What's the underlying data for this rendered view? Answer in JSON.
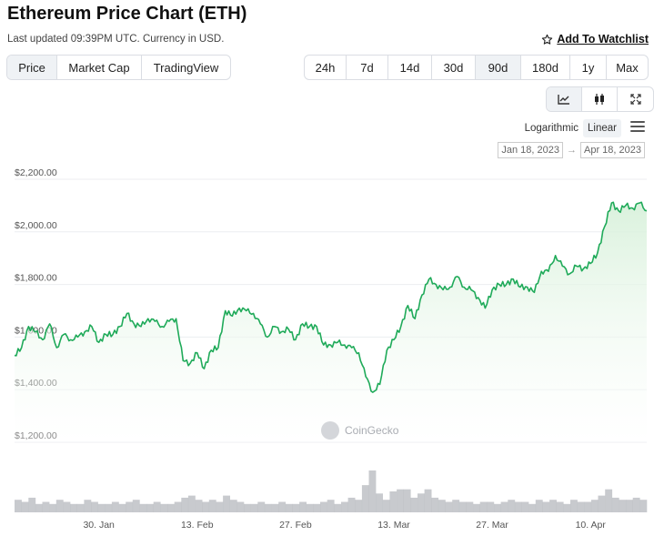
{
  "header": {
    "title": "Ethereum Price Chart (ETH)",
    "subtitle": "Last updated 09:39PM UTC. Currency in USD.",
    "watchlist_label": "Add To Watchlist"
  },
  "view_tabs": [
    {
      "label": "Price",
      "active": true
    },
    {
      "label": "Market Cap",
      "active": false
    },
    {
      "label": "TradingView",
      "active": false
    }
  ],
  "range_tabs": [
    {
      "label": "24h",
      "active": false
    },
    {
      "label": "7d",
      "active": false
    },
    {
      "label": "14d",
      "active": false
    },
    {
      "label": "30d",
      "active": false
    },
    {
      "label": "90d",
      "active": true
    },
    {
      "label": "180d",
      "active": false
    },
    {
      "label": "1y",
      "active": false
    },
    {
      "label": "Max",
      "active": false
    }
  ],
  "chart_type_icons": [
    {
      "name": "line-chart-icon",
      "active": true
    },
    {
      "name": "candlestick-icon",
      "active": false
    },
    {
      "name": "fullscreen-icon",
      "active": false
    }
  ],
  "scale": {
    "logarithmic_label": "Logarithmic",
    "linear_label": "Linear",
    "selected": "Linear"
  },
  "date_range": {
    "from": "Jan 18, 2023",
    "arrow": "→",
    "to": "Apr 18, 2023"
  },
  "watermark": "CoinGecko",
  "colors": {
    "line": "#1faa59",
    "fill_top": "#d6f0d9",
    "fill_bottom": "#ffffff",
    "volume": "#b6b8bd",
    "grid": "#eceef1"
  },
  "chart_data": {
    "type": "area",
    "title": "",
    "xlabel": "",
    "ylabel": "",
    "ylim": [
      1200,
      2200
    ],
    "yticks": [
      "$1,200.00",
      "$1,400.00",
      "$1,600.00",
      "$1,800.00",
      "$2,000.00",
      "$2,200.00"
    ],
    "ytick_values": [
      1200,
      1400,
      1600,
      1800,
      2000,
      2200
    ],
    "xticks": [
      "30. Jan",
      "13. Feb",
      "27. Feb",
      "13. Mar",
      "27. Mar",
      "10. Apr"
    ],
    "xtick_days": [
      12,
      26,
      40,
      54,
      68,
      82
    ],
    "grid": true,
    "legend": "none",
    "series": [
      {
        "x_days": [
          0,
          1,
          2,
          3,
          4,
          5,
          6,
          7,
          8,
          9,
          10,
          11,
          12,
          13,
          14,
          15,
          16,
          17,
          18,
          19,
          20,
          21,
          22,
          23,
          24,
          25,
          26,
          27,
          28,
          29,
          30,
          31,
          32,
          33,
          34,
          35,
          36,
          37,
          38,
          39,
          40,
          41,
          42,
          43,
          44,
          45,
          46,
          47,
          48,
          49,
          50,
          51,
          52,
          53,
          54,
          55,
          56,
          57,
          58,
          59,
          60,
          61,
          62,
          63,
          64,
          65,
          66,
          67,
          68,
          69,
          70,
          71,
          72,
          73,
          74,
          75,
          76,
          77,
          78,
          79,
          80,
          81,
          82,
          83,
          84,
          85,
          86,
          87,
          88,
          89,
          90
        ],
        "values": [
          1530,
          1560,
          1640,
          1620,
          1590,
          1650,
          1560,
          1610,
          1590,
          1600,
          1620,
          1640,
          1580,
          1610,
          1610,
          1640,
          1690,
          1650,
          1640,
          1670,
          1660,
          1640,
          1660,
          1670,
          1510,
          1500,
          1540,
          1480,
          1550,
          1560,
          1700,
          1680,
          1710,
          1700,
          1690,
          1650,
          1600,
          1640,
          1620,
          1630,
          1590,
          1650,
          1640,
          1640,
          1570,
          1570,
          1580,
          1570,
          1560,
          1540,
          1450,
          1390,
          1420,
          1550,
          1590,
          1640,
          1720,
          1670,
          1760,
          1820,
          1800,
          1780,
          1790,
          1830,
          1790,
          1780,
          1750,
          1710,
          1780,
          1800,
          1800,
          1820,
          1790,
          1790,
          1770,
          1850,
          1850,
          1910,
          1870,
          1840,
          1870,
          1860,
          1880,
          1920,
          2020,
          2110,
          2080,
          2100,
          2090,
          2110,
          2080
        ]
      }
    ],
    "volume": [
      0.3,
      0.25,
      0.35,
      0.2,
      0.25,
      0.2,
      0.3,
      0.25,
      0.2,
      0.2,
      0.3,
      0.25,
      0.2,
      0.2,
      0.25,
      0.2,
      0.25,
      0.3,
      0.2,
      0.2,
      0.25,
      0.2,
      0.2,
      0.25,
      0.35,
      0.4,
      0.3,
      0.25,
      0.3,
      0.25,
      0.4,
      0.3,
      0.25,
      0.2,
      0.2,
      0.25,
      0.2,
      0.2,
      0.25,
      0.2,
      0.2,
      0.25,
      0.2,
      0.2,
      0.25,
      0.3,
      0.2,
      0.25,
      0.35,
      0.3,
      0.65,
      1.0,
      0.45,
      0.3,
      0.5,
      0.55,
      0.55,
      0.35,
      0.45,
      0.55,
      0.35,
      0.3,
      0.25,
      0.3,
      0.25,
      0.25,
      0.2,
      0.25,
      0.25,
      0.2,
      0.25,
      0.3,
      0.25,
      0.25,
      0.2,
      0.3,
      0.25,
      0.3,
      0.25,
      0.2,
      0.3,
      0.25,
      0.25,
      0.3,
      0.4,
      0.55,
      0.35,
      0.3,
      0.3,
      0.35,
      0.3
    ]
  }
}
